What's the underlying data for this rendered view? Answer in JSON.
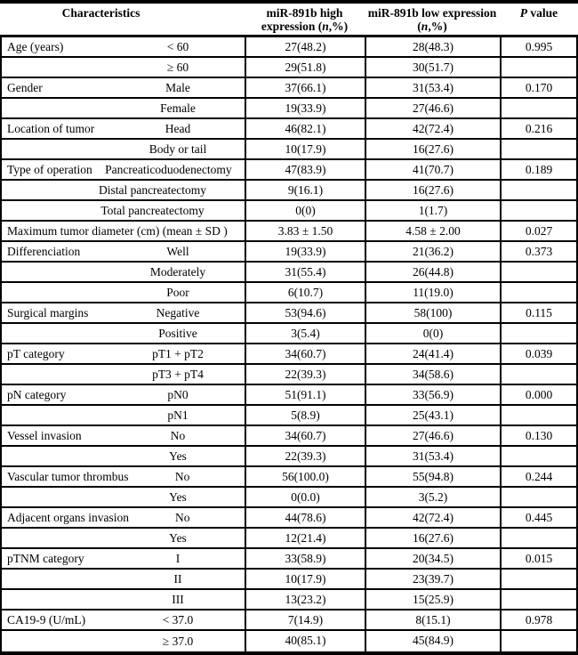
{
  "table": {
    "header": {
      "characteristics": "Characteristics",
      "high_line1": "miR-891b high",
      "high_line2_pre": "expression (",
      "high_n": "n",
      "high_line2_post": ",%)",
      "low_line1": "miR-891b low expression",
      "low_line2_pre": "(",
      "low_n": "n",
      "low_line2_post": ",%)",
      "p_symbol": "P",
      "p_rest": " value"
    },
    "rows": [
      {
        "label": "Age (years)",
        "sub": "< 60",
        "high": "27(48.2)",
        "low": "28(48.3)",
        "p": "0.995"
      },
      {
        "label": "",
        "sub": "≥ 60",
        "high": "29(51.8)",
        "low": "30(51.7)",
        "p": ""
      },
      {
        "label": "Gender",
        "sub": "Male",
        "high": "37(66.1)",
        "low": "31(53.4)",
        "p": "0.170"
      },
      {
        "label": "",
        "sub": "Female",
        "high": "19(33.9)",
        "low": "27(46.6)",
        "p": ""
      },
      {
        "label": "Location of tumor",
        "sub": "Head",
        "high": "46(82.1)",
        "low": "42(72.4)",
        "p": "0.216"
      },
      {
        "label": "",
        "sub": "Body or tail",
        "high": "10(17.9)",
        "low": "16(27.6)",
        "p": ""
      },
      {
        "label": "Type of operation",
        "sub": "Pancreaticoduodenectomy",
        "high": "47(83.9)",
        "low": "41(70.7)",
        "p": "0.189"
      },
      {
        "label": "",
        "sub": "Distal pancreatectomy",
        "high": "9(16.1)",
        "low": "16(27.6)",
        "p": ""
      },
      {
        "label": "",
        "sub": "Total pancreatectomy",
        "high": "0(0)",
        "low": "1(1.7)",
        "p": ""
      },
      {
        "label": "Maximum tumor diameter (cm) (mean ± SD )",
        "sub": "",
        "high": "3.83 ± 1.50",
        "low": "4.58 ± 2.00",
        "p": "0.027"
      },
      {
        "label": "Differenciation",
        "sub": "Well",
        "high": "19(33.9)",
        "low": "21(36.2)",
        "p": "0.373"
      },
      {
        "label": "",
        "sub": "Moderately",
        "high": "31(55.4)",
        "low": "26(44.8)",
        "p": ""
      },
      {
        "label": "",
        "sub": "Poor",
        "high": "6(10.7)",
        "low": "11(19.0)",
        "p": ""
      },
      {
        "label": "Surgical margins",
        "sub": "Negative",
        "high": "53(94.6)",
        "low": "58(100)",
        "p": "0.115"
      },
      {
        "label": "",
        "sub": "Positive",
        "high": "3(5.4)",
        "low": "0(0)",
        "p": ""
      },
      {
        "label": "pT category",
        "sub": "pT1 + pT2",
        "high": "34(60.7)",
        "low": "24(41.4)",
        "p": "0.039"
      },
      {
        "label": "",
        "sub": "pT3 + pT4",
        "high": "22(39.3)",
        "low": "34(58.6)",
        "p": ""
      },
      {
        "label": "pN category",
        "sub": "pN0",
        "high": "51(91.1)",
        "low": "33(56.9)",
        "p": "0.000"
      },
      {
        "label": "",
        "sub": "pN1",
        "high": "5(8.9)",
        "low": "25(43.1)",
        "p": ""
      },
      {
        "label": "Vessel invasion",
        "sub": "No",
        "high": "34(60.7)",
        "low": "27(46.6)",
        "p": "0.130"
      },
      {
        "label": "",
        "sub": "Yes",
        "high": "22(39.3)",
        "low": "31(53.4)",
        "p": ""
      },
      {
        "label": "Vascular tumor thrombus",
        "sub": "No",
        "high": "56(100.0)",
        "low": "55(94.8)",
        "p": "0.244"
      },
      {
        "label": "",
        "sub": "Yes",
        "high": "0(0.0)",
        "low": "3(5.2)",
        "p": ""
      },
      {
        "label": "Adjacent organs invasion",
        "sub": "No",
        "high": "44(78.6)",
        "low": "42(72.4)",
        "p": "0.445"
      },
      {
        "label": "",
        "sub": "Yes",
        "high": "12(21.4)",
        "low": "16(27.6)",
        "p": ""
      },
      {
        "label": "pTNM category",
        "sub": "I",
        "high": "33(58.9)",
        "low": "20(34.5)",
        "p": "0.015"
      },
      {
        "label": "",
        "sub": "II",
        "high": "10(17.9)",
        "low": "23(39.7)",
        "p": ""
      },
      {
        "label": "",
        "sub": "III",
        "high": "13(23.2)",
        "low": "15(25.9)",
        "p": ""
      },
      {
        "label": "CA19-9 (U/mL)",
        "sub": "< 37.0",
        "high": "7(14.9)",
        "low": "8(15.1)",
        "p": "0.978"
      },
      {
        "label": "",
        "sub": "≥ 37.0",
        "high": "40(85.1)",
        "low": "45(84.9)",
        "p": ""
      }
    ]
  },
  "colors": {
    "border": "#000000",
    "text": "#000000",
    "background": "#ffffff"
  }
}
